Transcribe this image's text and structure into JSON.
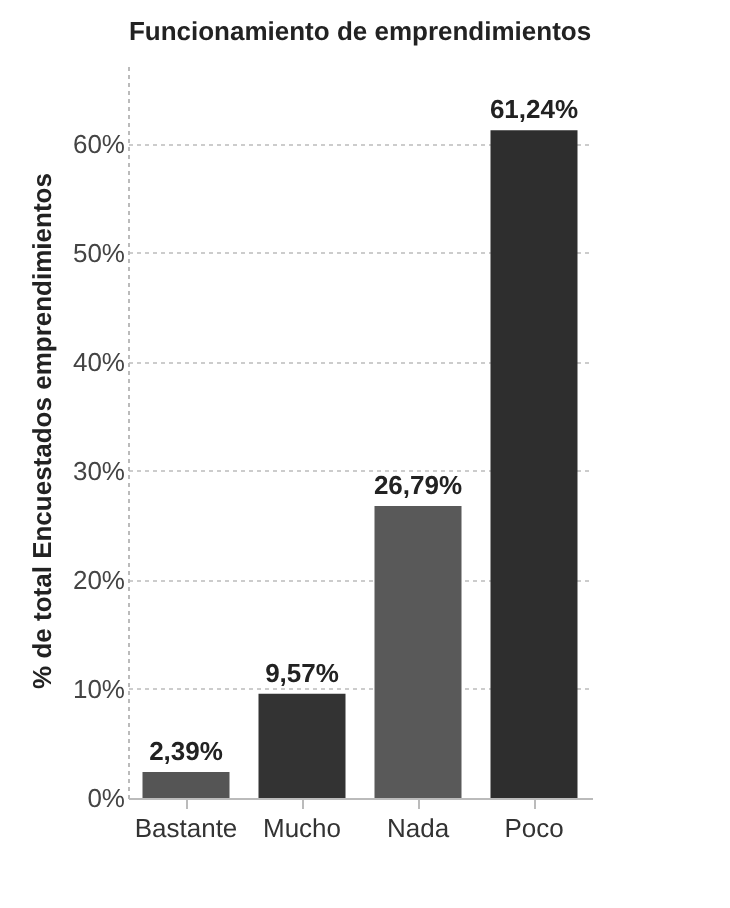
{
  "chart_data": {
    "type": "bar",
    "title": "Funcionamiento de emprendimientos",
    "ylabel": "% de total Encuestados emprendimientos",
    "categories": [
      "Bastante",
      "Mucho",
      "Nada",
      "Poco"
    ],
    "values": [
      2.39,
      9.57,
      26.79,
      61.24
    ],
    "colors": [
      "#555555",
      "#333333",
      "#595959",
      "#2e2e2e"
    ],
    "value_labels": [
      "2,39%",
      "9,57%",
      "26,79%",
      "61,24%"
    ],
    "ylim": [
      0,
      67.5
    ],
    "yticks": [
      {
        "value": 0,
        "label": "0%"
      },
      {
        "value": 10,
        "label": "10%"
      },
      {
        "value": 20,
        "label": "20%"
      },
      {
        "value": 30,
        "label": "30%"
      },
      {
        "value": 40,
        "label": "40%"
      },
      {
        "value": 50,
        "label": "50%"
      },
      {
        "value": 60,
        "label": "60%"
      }
    ],
    "grid": "y"
  }
}
